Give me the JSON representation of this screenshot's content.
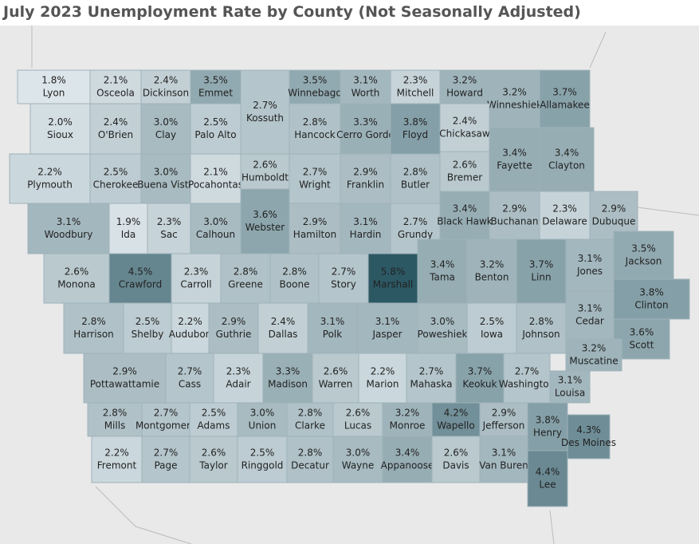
{
  "title": "July 2023 Unemployment Rate by County (Not Seasonally Adjusted)",
  "map": {
    "counties": [
      {
        "name": "Lyon",
        "value": 1.8,
        "label": "1.8%"
      },
      {
        "name": "Osceola",
        "value": 2.1,
        "label": "2.1%"
      },
      {
        "name": "Dickinson",
        "value": 2.4,
        "label": "2.4%"
      },
      {
        "name": "Emmet",
        "value": 3.5,
        "label": "3.5%"
      },
      {
        "name": "Kossuth",
        "value": 2.7,
        "label": "2.7%"
      },
      {
        "name": "Winnebago",
        "value": 3.5,
        "label": "3.5%"
      },
      {
        "name": "Worth",
        "value": 3.1,
        "label": "3.1%"
      },
      {
        "name": "Mitchell",
        "value": 2.3,
        "label": "2.3%"
      },
      {
        "name": "Howard",
        "value": 3.2,
        "label": "3.2%"
      },
      {
        "name": "Winneshiek",
        "value": 3.2,
        "label": "3.2%"
      },
      {
        "name": "Allamakee",
        "value": 3.7,
        "label": "3.7%"
      },
      {
        "name": "Sioux",
        "value": 2.0,
        "label": "2.0%"
      },
      {
        "name": "O'Brien",
        "value": 2.4,
        "label": "2.4%"
      },
      {
        "name": "Clay",
        "value": 3.0,
        "label": "3.0%"
      },
      {
        "name": "Palo Alto",
        "value": 2.5,
        "label": "2.5%"
      },
      {
        "name": "Hancock",
        "value": 2.8,
        "label": "2.8%"
      },
      {
        "name": "Cerro Gordo",
        "value": 3.3,
        "label": "3.3%"
      },
      {
        "name": "Floyd",
        "value": 3.8,
        "label": "3.8%"
      },
      {
        "name": "Chickasaw",
        "value": 2.4,
        "label": "2.4%"
      },
      {
        "name": "Fayette",
        "value": 3.4,
        "label": "3.4%"
      },
      {
        "name": "Clayton",
        "value": 3.4,
        "label": "3.4%"
      },
      {
        "name": "Plymouth",
        "value": 2.2,
        "label": "2.2%"
      },
      {
        "name": "Cherokee",
        "value": 2.5,
        "label": "2.5%"
      },
      {
        "name": "Buena Vista",
        "value": 3.0,
        "label": "3.0%"
      },
      {
        "name": "Pocahontas",
        "value": 2.1,
        "label": "2.1%"
      },
      {
        "name": "Humboldt",
        "value": 2.6,
        "label": "2.6%"
      },
      {
        "name": "Wright",
        "value": 2.7,
        "label": "2.7%"
      },
      {
        "name": "Franklin",
        "value": 2.9,
        "label": "2.9%"
      },
      {
        "name": "Butler",
        "value": 2.8,
        "label": "2.8%"
      },
      {
        "name": "Bremer",
        "value": 2.6,
        "label": "2.6%"
      },
      {
        "name": "Buchanan",
        "value": 2.9,
        "label": "2.9%"
      },
      {
        "name": "Delaware",
        "value": 2.3,
        "label": "2.3%"
      },
      {
        "name": "Dubuque",
        "value": 2.9,
        "label": "2.9%"
      },
      {
        "name": "Woodbury",
        "value": 3.1,
        "label": "3.1%"
      },
      {
        "name": "Ida",
        "value": 1.9,
        "label": "1.9%"
      },
      {
        "name": "Sac",
        "value": 2.3,
        "label": "2.3%"
      },
      {
        "name": "Calhoun",
        "value": 3.0,
        "label": "3.0%"
      },
      {
        "name": "Webster",
        "value": 3.6,
        "label": "3.6%"
      },
      {
        "name": "Hamilton",
        "value": 2.9,
        "label": "2.9%"
      },
      {
        "name": "Hardin",
        "value": 3.1,
        "label": "3.1%"
      },
      {
        "name": "Grundy",
        "value": 2.7,
        "label": "2.7%"
      },
      {
        "name": "Black Hawk",
        "value": 3.4,
        "label": "3.4%"
      },
      {
        "name": "Monona",
        "value": 2.6,
        "label": "2.6%"
      },
      {
        "name": "Crawford",
        "value": 4.5,
        "label": "4.5%"
      },
      {
        "name": "Carroll",
        "value": 2.3,
        "label": "2.3%"
      },
      {
        "name": "Greene",
        "value": 2.8,
        "label": "2.8%"
      },
      {
        "name": "Boone",
        "value": 2.8,
        "label": "2.8%"
      },
      {
        "name": "Story",
        "value": 2.7,
        "label": "2.7%"
      },
      {
        "name": "Marshall",
        "value": 5.8,
        "label": "5.8%"
      },
      {
        "name": "Tama",
        "value": 3.4,
        "label": "3.4%"
      },
      {
        "name": "Benton",
        "value": 3.2,
        "label": "3.2%"
      },
      {
        "name": "Linn",
        "value": 3.7,
        "label": "3.7%"
      },
      {
        "name": "Jones",
        "value": 3.1,
        "label": "3.1%"
      },
      {
        "name": "Jackson",
        "value": 3.5,
        "label": "3.5%"
      },
      {
        "name": "Harrison",
        "value": 2.8,
        "label": "2.8%"
      },
      {
        "name": "Shelby",
        "value": 2.5,
        "label": "2.5%"
      },
      {
        "name": "Audubon",
        "value": 2.2,
        "label": "2.2%"
      },
      {
        "name": "Guthrie",
        "value": 2.9,
        "label": "2.9%"
      },
      {
        "name": "Dallas",
        "value": 2.4,
        "label": "2.4%"
      },
      {
        "name": "Polk",
        "value": 3.1,
        "label": "3.1%"
      },
      {
        "name": "Jasper",
        "value": 3.1,
        "label": "3.1%"
      },
      {
        "name": "Poweshiek",
        "value": 3.0,
        "label": "3.0%"
      },
      {
        "name": "Iowa",
        "value": 2.5,
        "label": "2.5%"
      },
      {
        "name": "Johnson",
        "value": 2.8,
        "label": "2.8%"
      },
      {
        "name": "Cedar",
        "value": 3.1,
        "label": "3.1%"
      },
      {
        "name": "Clinton",
        "value": 3.8,
        "label": "3.8%"
      },
      {
        "name": "Scott",
        "value": 3.6,
        "label": "3.6%"
      },
      {
        "name": "Pottawattamie",
        "value": 2.9,
        "label": "2.9%"
      },
      {
        "name": "Cass",
        "value": 2.7,
        "label": "2.7%"
      },
      {
        "name": "Adair",
        "value": 2.3,
        "label": "2.3%"
      },
      {
        "name": "Madison",
        "value": 3.3,
        "label": "3.3%"
      },
      {
        "name": "Warren",
        "value": 2.6,
        "label": "2.6%"
      },
      {
        "name": "Marion",
        "value": 2.2,
        "label": "2.2%"
      },
      {
        "name": "Mahaska",
        "value": 2.7,
        "label": "2.7%"
      },
      {
        "name": "Keokuk",
        "value": 3.7,
        "label": "3.7%"
      },
      {
        "name": "Washington",
        "value": 2.7,
        "label": "2.7%"
      },
      {
        "name": "Muscatine",
        "value": 3.2,
        "label": "3.2%"
      },
      {
        "name": "Louisa",
        "value": 3.1,
        "label": "3.1%"
      },
      {
        "name": "Mills",
        "value": 2.8,
        "label": "2.8%"
      },
      {
        "name": "Montgomery",
        "value": 2.7,
        "label": "2.7%"
      },
      {
        "name": "Adams",
        "value": 2.5,
        "label": "2.5%"
      },
      {
        "name": "Union",
        "value": 3.0,
        "label": "3.0%"
      },
      {
        "name": "Clarke",
        "value": 2.8,
        "label": "2.8%"
      },
      {
        "name": "Lucas",
        "value": 2.6,
        "label": "2.6%"
      },
      {
        "name": "Monroe",
        "value": 3.2,
        "label": "3.2%"
      },
      {
        "name": "Wapello",
        "value": 4.2,
        "label": "4.2%"
      },
      {
        "name": "Jefferson",
        "value": 2.9,
        "label": "2.9%"
      },
      {
        "name": "Henry",
        "value": 3.8,
        "label": "3.8%"
      },
      {
        "name": "Des Moines",
        "value": 4.3,
        "label": "4.3%"
      },
      {
        "name": "Fremont",
        "value": 2.2,
        "label": "2.2%"
      },
      {
        "name": "Page",
        "value": 2.7,
        "label": "2.7%"
      },
      {
        "name": "Taylor",
        "value": 2.6,
        "label": "2.6%"
      },
      {
        "name": "Ringgold",
        "value": 2.5,
        "label": "2.5%"
      },
      {
        "name": "Decatur",
        "value": 2.8,
        "label": "2.8%"
      },
      {
        "name": "Wayne",
        "value": 3.0,
        "label": "3.0%"
      },
      {
        "name": "Appanoose",
        "value": 3.4,
        "label": "3.4%"
      },
      {
        "name": "Davis",
        "value": 2.6,
        "label": "2.6%"
      },
      {
        "name": "Van Buren",
        "value": 3.1,
        "label": "3.1%"
      },
      {
        "name": "Lee",
        "value": 4.4,
        "label": "4.4%"
      }
    ]
  }
}
